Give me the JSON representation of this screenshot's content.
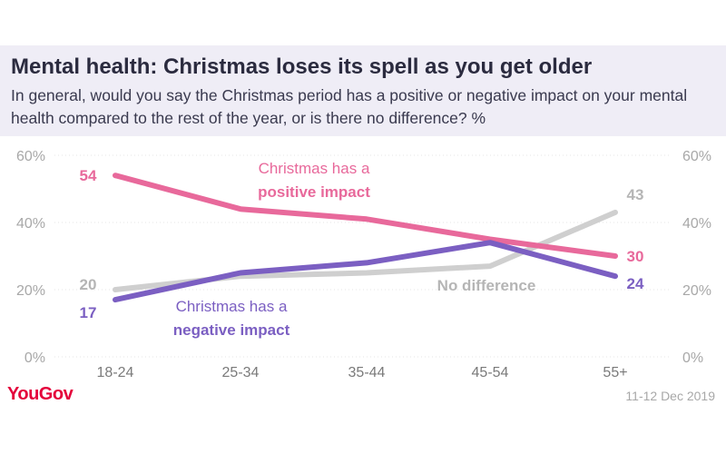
{
  "header": {
    "title": "Mental health: Christmas loses its spell as you get older",
    "subtitle": "In general, would you say the Christmas period has a positive or negative impact on your mental health compared to the rest of the year, or is there no difference? %"
  },
  "footer": {
    "brand": "YouGov",
    "date": "11-12 Dec 2019"
  },
  "chart_data": {
    "type": "line",
    "categories": [
      "18-24",
      "25-34",
      "35-44",
      "45-54",
      "55+"
    ],
    "ylim": [
      0,
      60
    ],
    "yticks": [
      "0%",
      "20%",
      "40%",
      "60%"
    ],
    "ytick_values": [
      0,
      20,
      40,
      60
    ],
    "grid": true,
    "series": [
      {
        "key": "positive",
        "label_line1": "Christmas has a",
        "label_line2": "positive impact",
        "color": "#e8699b",
        "values": [
          54,
          44,
          41,
          35,
          30
        ],
        "start_label": "54",
        "end_label": "30"
      },
      {
        "key": "negative",
        "label_line1": "Christmas has a",
        "label_line2": "negative impact",
        "color": "#7b5fc2",
        "values": [
          17,
          25,
          28,
          34,
          24
        ],
        "start_label": "17",
        "end_label": "24"
      },
      {
        "key": "no-difference",
        "label": "No difference",
        "color": "#cfcfcf",
        "values": [
          20,
          24,
          25,
          27,
          43
        ],
        "start_label": "20",
        "end_label": "43"
      }
    ]
  }
}
